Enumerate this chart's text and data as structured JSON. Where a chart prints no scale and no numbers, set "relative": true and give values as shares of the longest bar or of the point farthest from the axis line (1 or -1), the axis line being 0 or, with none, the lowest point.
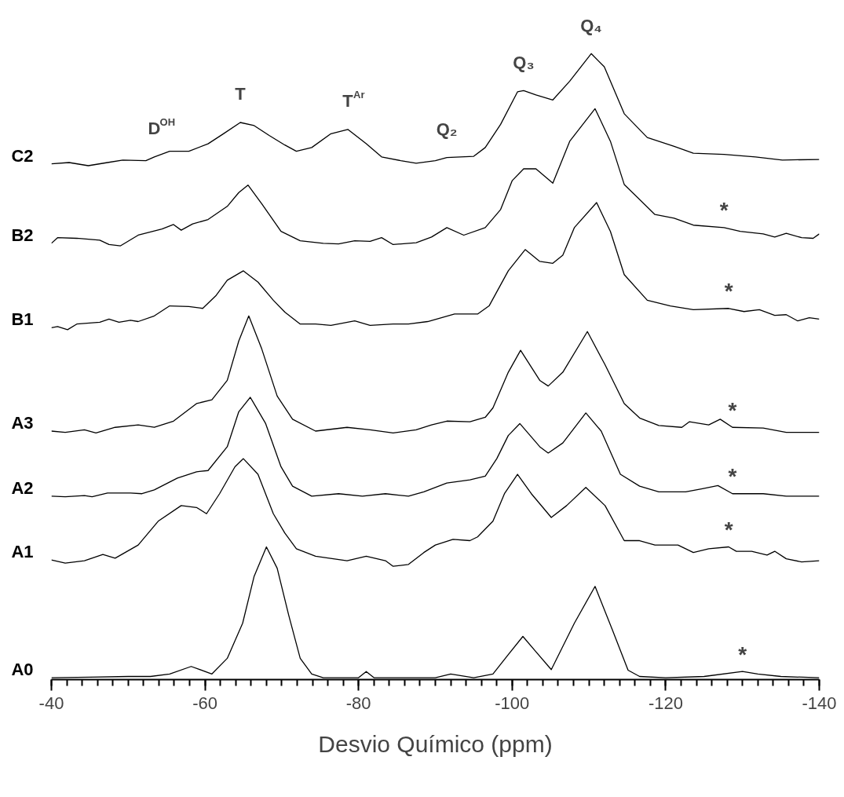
{
  "chart_data": {
    "type": "line",
    "relative": true,
    "xlabel": "Desvio Químico (ppm)",
    "xlim": [
      -40,
      -140
    ],
    "xticks": [
      -40,
      -60,
      -80,
      -100,
      -120,
      -140
    ],
    "grid": false,
    "marker": "none",
    "line_style": "solid",
    "series": [
      {
        "name": "C2",
        "color": "#000000",
        "x": [
          -40,
          -42.3,
          -44.8,
          -47.3,
          -49.3,
          -52.3,
          -53.4,
          -55.4,
          -57.9,
          -60.4,
          -62.4,
          -64.6,
          -66.4,
          -68.4,
          -70.4,
          -71.9,
          -73.9,
          -76.4,
          -78.6,
          -81,
          -83,
          -85.5,
          -87.5,
          -90,
          -91.5,
          -95,
          -96.5,
          -98.5,
          -100.7,
          -101.5,
          -103.1,
          -105.3,
          -107.5,
          -110.3,
          -112,
          -114.6,
          -117.6,
          -121.1,
          -123.6,
          -127.6,
          -131.7,
          -135.2,
          -140
        ],
        "values": [
          0.824,
          0.826,
          0.821,
          0.826,
          0.83,
          0.829,
          0.835,
          0.844,
          0.844,
          0.856,
          0.872,
          0.89,
          0.885,
          0.869,
          0.854,
          0.844,
          0.85,
          0.872,
          0.879,
          0.856,
          0.835,
          0.829,
          0.825,
          0.829,
          0.834,
          0.836,
          0.85,
          0.887,
          0.939,
          0.941,
          0.934,
          0.926,
          0.956,
          1,
          0.979,
          0.904,
          0.866,
          0.852,
          0.841,
          0.839,
          0.835,
          0.83,
          0.831
        ]
      },
      {
        "name": "B2",
        "color": "#000000",
        "x": [
          -40,
          -40.8,
          -43.3,
          -46.3,
          -47.5,
          -49,
          -51.3,
          -54.4,
          -55.9,
          -56.9,
          -58.4,
          -60.4,
          -62.9,
          -64.4,
          -65.6,
          -67.4,
          -69.9,
          -72.4,
          -75.4,
          -77.4,
          -79.5,
          -81.5,
          -83,
          -84.5,
          -87.5,
          -89.5,
          -91.5,
          -93.7,
          -96.5,
          -98.5,
          -100,
          -101.5,
          -103.1,
          -105.3,
          -107.5,
          -110.8,
          -112.8,
          -114.6,
          -118.6,
          -121.1,
          -123.6,
          -127.6,
          -129.7,
          -132.7,
          -134.2,
          -135.7,
          -137.7,
          -139.2,
          -140
        ],
        "values": [
          0.697,
          0.706,
          0.705,
          0.702,
          0.695,
          0.693,
          0.71,
          0.72,
          0.727,
          0.718,
          0.728,
          0.735,
          0.756,
          0.778,
          0.79,
          0.76,
          0.716,
          0.701,
          0.697,
          0.696,
          0.701,
          0.7,
          0.706,
          0.695,
          0.698,
          0.707,
          0.722,
          0.71,
          0.722,
          0.751,
          0.797,
          0.816,
          0.816,
          0.793,
          0.86,
          0.912,
          0.86,
          0.791,
          0.743,
          0.737,
          0.726,
          0.722,
          0.716,
          0.712,
          0.707,
          0.713,
          0.706,
          0.705,
          0.712
        ]
      },
      {
        "name": "B1",
        "color": "#000000",
        "x": [
          -40,
          -40.8,
          -42.1,
          -43.3,
          -46.3,
          -47.5,
          -48.8,
          -50.3,
          -51.3,
          -53.4,
          -55.4,
          -57.9,
          -59.7,
          -61.4,
          -62.9,
          -65,
          -66.9,
          -68.9,
          -70.4,
          -72.4,
          -74.4,
          -76.4,
          -79.5,
          -81.5,
          -84.5,
          -86.5,
          -89,
          -92.5,
          -95.5,
          -97,
          -99.5,
          -101.7,
          -103.6,
          -105.3,
          -106.6,
          -108.1,
          -111,
          -112.8,
          -114.6,
          -117.6,
          -120.6,
          -123.6,
          -128.2,
          -130.2,
          -132.2,
          -134.2,
          -135.7,
          -137.2,
          -138.7,
          -140
        ],
        "values": [
          0.562,
          0.564,
          0.559,
          0.568,
          0.571,
          0.576,
          0.571,
          0.574,
          0.572,
          0.581,
          0.597,
          0.596,
          0.593,
          0.613,
          0.638,
          0.653,
          0.635,
          0.606,
          0.587,
          0.568,
          0.568,
          0.566,
          0.573,
          0.566,
          0.568,
          0.568,
          0.572,
          0.584,
          0.584,
          0.597,
          0.653,
          0.687,
          0.668,
          0.665,
          0.678,
          0.722,
          0.762,
          0.716,
          0.647,
          0.606,
          0.597,
          0.591,
          0.593,
          0.588,
          0.591,
          0.582,
          0.583,
          0.573,
          0.578,
          0.576
        ]
      },
      {
        "name": "A3",
        "color": "#000000",
        "x": [
          -40,
          -41.8,
          -44.3,
          -45.8,
          -48.3,
          -51.3,
          -53.4,
          -55.9,
          -58.9,
          -60.9,
          -62.9,
          -64.4,
          -65.7,
          -67.4,
          -69.4,
          -71.4,
          -74.4,
          -78.5,
          -81.5,
          -84.5,
          -87.5,
          -89.5,
          -91.5,
          -94.5,
          -96.5,
          -97.5,
          -99.5,
          -101.1,
          -103.6,
          -104.7,
          -106.6,
          -109.8,
          -112.1,
          -114.6,
          -116.6,
          -119.1,
          -122.1,
          -123.1,
          -125.6,
          -127.1,
          -128.7,
          -132.7,
          -135.7,
          -140
        ],
        "values": [
          0.397,
          0.395,
          0.399,
          0.394,
          0.403,
          0.407,
          0.403,
          0.413,
          0.441,
          0.447,
          0.478,
          0.541,
          0.581,
          0.528,
          0.453,
          0.416,
          0.397,
          0.403,
          0.399,
          0.394,
          0.399,
          0.407,
          0.413,
          0.412,
          0.419,
          0.434,
          0.491,
          0.526,
          0.478,
          0.469,
          0.491,
          0.556,
          0.503,
          0.441,
          0.418,
          0.406,
          0.403,
          0.412,
          0.407,
          0.416,
          0.403,
          0.402,
          0.395,
          0.395
        ]
      },
      {
        "name": "A2",
        "color": "#000000",
        "x": [
          -40,
          -41.8,
          -44.3,
          -45.3,
          -47.3,
          -50.3,
          -51.8,
          -53.4,
          -56.4,
          -58.9,
          -60.4,
          -62.9,
          -64.4,
          -65.9,
          -67.9,
          -69.9,
          -71.4,
          -73.9,
          -77.4,
          -80.5,
          -83.5,
          -86.5,
          -88.5,
          -91.5,
          -94.5,
          -96.5,
          -98,
          -99.5,
          -101,
          -103.6,
          -104.7,
          -106.6,
          -109.6,
          -111.6,
          -114.1,
          -116.6,
          -119.1,
          -122.6,
          -124.8,
          -126.8,
          -128.7,
          -132.7,
          -135.7,
          -140
        ],
        "values": [
          0.293,
          0.292,
          0.294,
          0.292,
          0.298,
          0.298,
          0.297,
          0.303,
          0.322,
          0.332,
          0.334,
          0.372,
          0.428,
          0.451,
          0.409,
          0.34,
          0.309,
          0.293,
          0.297,
          0.293,
          0.297,
          0.293,
          0.3,
          0.314,
          0.319,
          0.325,
          0.353,
          0.39,
          0.409,
          0.372,
          0.362,
          0.378,
          0.426,
          0.397,
          0.328,
          0.309,
          0.3,
          0.3,
          0.305,
          0.31,
          0.297,
          0.297,
          0.293,
          0.293
        ]
      },
      {
        "name": "A1",
        "color": "#000000",
        "x": [
          -40,
          -41.8,
          -44.3,
          -46.7,
          -48.3,
          -51.3,
          -53.9,
          -56.9,
          -58.9,
          -60.2,
          -61.9,
          -63.9,
          -65,
          -66.9,
          -68.9,
          -70.4,
          -71.9,
          -74.4,
          -78.5,
          -81,
          -83.5,
          -84.5,
          -86.5,
          -88.5,
          -90,
          -92.3,
          -94.5,
          -95.5,
          -97.5,
          -99,
          -100.7,
          -102.5,
          -105.1,
          -107.1,
          -109.6,
          -112.1,
          -114.6,
          -116.6,
          -118.6,
          -121.6,
          -123.6,
          -125.6,
          -128.2,
          -129.2,
          -131.2,
          -133.2,
          -134.2,
          -135.7,
          -137.7,
          -140
        ],
        "values": [
          0.191,
          0.186,
          0.19,
          0.2,
          0.194,
          0.215,
          0.253,
          0.278,
          0.275,
          0.265,
          0.297,
          0.34,
          0.353,
          0.328,
          0.265,
          0.234,
          0.209,
          0.197,
          0.19,
          0.197,
          0.19,
          0.181,
          0.184,
          0.203,
          0.215,
          0.224,
          0.222,
          0.228,
          0.253,
          0.297,
          0.328,
          0.297,
          0.259,
          0.278,
          0.307,
          0.278,
          0.222,
          0.222,
          0.215,
          0.215,
          0.203,
          0.209,
          0.212,
          0.205,
          0.205,
          0.199,
          0.205,
          0.193,
          0.188,
          0.19
        ]
      },
      {
        "name": "A0",
        "color": "#000000",
        "x": [
          -40,
          -45,
          -50,
          -52.9,
          -55.4,
          -58.2,
          -60.9,
          -62.9,
          -64.9,
          -66.4,
          -68,
          -69.4,
          -70.9,
          -72.4,
          -73.9,
          -75.4,
          -80,
          -81,
          -82,
          -90,
          -92,
          -95,
          -97.5,
          -99.5,
          -101.4,
          -103,
          -105.1,
          -108.1,
          -110.8,
          -113.1,
          -115.1,
          -116.6,
          -120,
          -125,
          -130,
          -132,
          -135,
          -140
        ],
        "values": [
          0.003,
          0.004,
          0.005,
          0.005,
          0.009,
          0.021,
          0.009,
          0.034,
          0.09,
          0.165,
          0.212,
          0.178,
          0.103,
          0.034,
          0.009,
          0.003,
          0.003,
          0.013,
          0.003,
          0.003,
          0.009,
          0.003,
          0.009,
          0.04,
          0.069,
          0.046,
          0.016,
          0.09,
          0.149,
          0.078,
          0.015,
          0.005,
          0.003,
          0.005,
          0.013,
          0.009,
          0.005,
          0.003
        ]
      }
    ],
    "annotations": [
      {
        "text": "D$^{OH}$",
        "x": -53.4,
        "y": 0.835
      },
      {
        "text": "T",
        "x": -64.6,
        "y": 0.89
      },
      {
        "text": "T$^{Ar}$",
        "x": -78.6,
        "y": 0.879
      },
      {
        "text": "Q₂",
        "x": -91.5,
        "y": 0.834
      },
      {
        "text": "Q₃",
        "x": -101.5,
        "y": 0.941
      },
      {
        "text": "Q₄",
        "x": -110.3,
        "y": 1
      },
      {
        "text": "*",
        "x": -127.6,
        "y": 0.722
      },
      {
        "text": "*",
        "x": -128.2,
        "y": 0.593
      },
      {
        "text": "*",
        "x": -128.7,
        "y": 0.403
      },
      {
        "text": "*",
        "x": -128.7,
        "y": 0.297
      },
      {
        "text": "*",
        "x": -128.2,
        "y": 0.212
      },
      {
        "text": "*",
        "x": -130,
        "y": 0.013
      }
    ]
  }
}
